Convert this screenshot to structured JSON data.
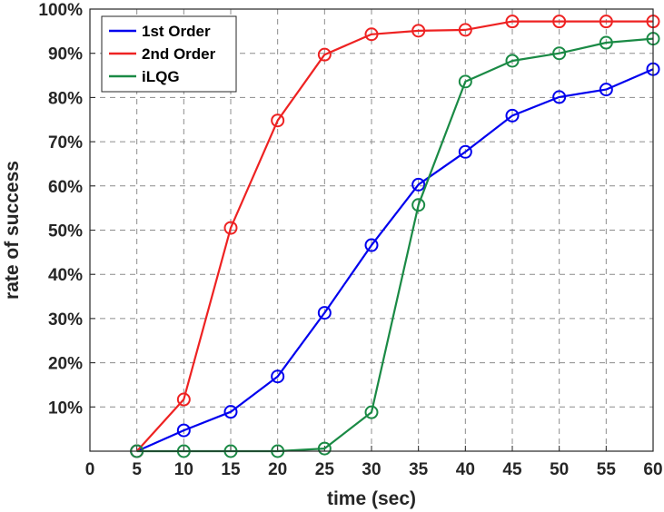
{
  "chart_data": {
    "type": "line",
    "title": "",
    "xlabel": "time (sec)",
    "ylabel": "rate of success",
    "x": [
      5,
      10,
      15,
      20,
      25,
      30,
      35,
      40,
      45,
      50,
      55,
      60
    ],
    "xlim": [
      0,
      60
    ],
    "ylim": [
      0,
      100
    ],
    "x_ticks": [
      "0",
      "5",
      "10",
      "15",
      "20",
      "25",
      "30",
      "35",
      "40",
      "45",
      "50",
      "55",
      "60"
    ],
    "y_ticks": [
      "10%",
      "20%",
      "30%",
      "40%",
      "50%",
      "60%",
      "70%",
      "80%",
      "90%",
      "100%"
    ],
    "grid": true,
    "legend_position": "top-left",
    "series": [
      {
        "name": "1st Order",
        "color": "#0000ee",
        "values": [
          0,
          4.7,
          8.9,
          16.9,
          31.3,
          46.6,
          60.3,
          67.7,
          75.9,
          80.1,
          81.8,
          86.4
        ]
      },
      {
        "name": "2nd Order",
        "color": "#ee2222",
        "values": [
          0,
          11.7,
          50.5,
          74.8,
          89.7,
          94.3,
          95.1,
          95.3,
          97.2,
          97.2,
          97.2,
          97.2
        ]
      },
      {
        "name": "iLQG",
        "color": "#1a8a45",
        "values": [
          0,
          0,
          0,
          0,
          0.6,
          8.8,
          55.7,
          83.6,
          88.3,
          90.0,
          92.4,
          93.3
        ]
      }
    ]
  }
}
